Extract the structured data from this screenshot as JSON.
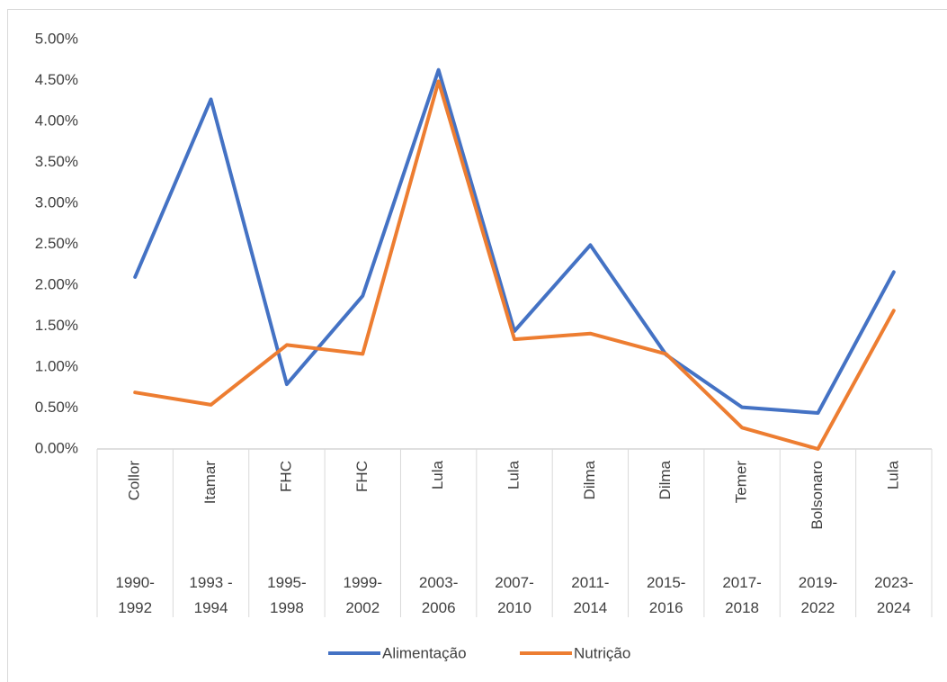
{
  "chart_data": {
    "type": "line",
    "categories": [
      "Collor",
      "Itamar",
      "FHC",
      "FHC",
      "Lula",
      "Lula",
      "Dilma",
      "Dilma",
      "Temer",
      "Bolsonaro",
      "Lula"
    ],
    "periods": [
      "1990-\n1992",
      "1993 -\n1994",
      "1995-\n1998",
      "1999-\n2002",
      "2003-\n2006",
      "2007-\n2010",
      "2011-\n2014",
      "2015-\n2016",
      "2017-\n2018",
      "2019-\n2022",
      "2023-\n2024"
    ],
    "series": [
      {
        "name": "Alimentação",
        "color": "#4472c4",
        "values": [
          2.1,
          4.27,
          0.79,
          1.87,
          4.63,
          1.44,
          2.49,
          1.15,
          0.51,
          0.44,
          2.16
        ]
      },
      {
        "name": "Nutrição",
        "color": "#ed7d31",
        "values": [
          0.69,
          0.54,
          1.27,
          1.16,
          4.49,
          1.34,
          1.41,
          1.16,
          0.26,
          0.0,
          1.69
        ]
      }
    ],
    "ylim": [
      0,
      5
    ],
    "yticks": [
      {
        "value": 0,
        "label": "0.00%"
      },
      {
        "value": 0.5,
        "label": "0.50%"
      },
      {
        "value": 1,
        "label": "1.00%"
      },
      {
        "value": 1.5,
        "label": "1.50%"
      },
      {
        "value": 2,
        "label": "2.00%"
      },
      {
        "value": 2.5,
        "label": "2.50%"
      },
      {
        "value": 3,
        "label": "3.00%"
      },
      {
        "value": 3.5,
        "label": "3.50%"
      },
      {
        "value": 4,
        "label": "4.00%"
      },
      {
        "value": 4.5,
        "label": "4.50%"
      },
      {
        "value": 5,
        "label": "5.00%"
      }
    ],
    "grid": false,
    "legend": "bottom"
  }
}
